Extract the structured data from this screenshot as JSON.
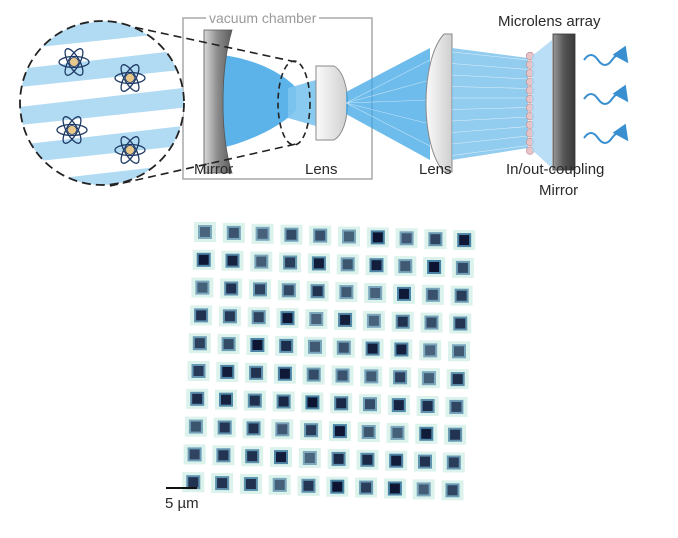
{
  "labels": {
    "vacuum_chamber": "vacuum chamber",
    "mirror": "Mirror",
    "lens_inner": "Lens",
    "lens_outer": "Lens",
    "microlens_array": "Microlens array",
    "coupling_line1": "In/out-coupling",
    "coupling_line2": "Mirror",
    "scale_bar": "5 µm"
  },
  "colors": {
    "beam": "#3ea6e6",
    "beam_light": "#a9d6f2",
    "mirror_dark": "#6b6b6b",
    "atom_nucleus": "#e8c88a",
    "wave": "#3a8fd0",
    "microlens_bead": "#e7c4c8"
  },
  "icons": [
    "atom-icon",
    "wave-arrow-icon"
  ],
  "atom_image": {
    "rows": 10,
    "cols": 10,
    "spot_color_dark": "#0c1230",
    "spot_color_mid": "#3f7aa0",
    "spot_color_halo": "#bfe8dc"
  }
}
